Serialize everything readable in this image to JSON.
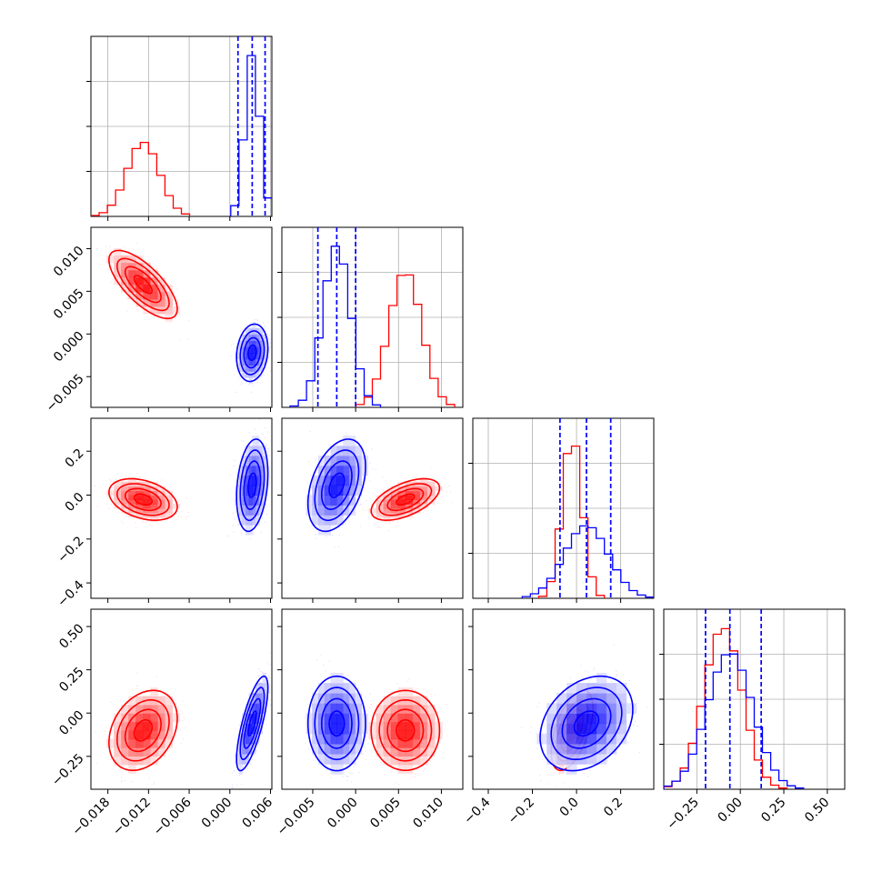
{
  "chart_data": {
    "type": "corner",
    "title": "",
    "colors": {
      "red": "#ff0000",
      "blue": "#0000ff",
      "grid": "#b0b0b0"
    },
    "grid": true,
    "legend": "none",
    "parameters": [
      {
        "range": [
          -0.0205,
          0.0062
        ],
        "ticks": [
          -0.018,
          -0.012,
          -0.006,
          0.0,
          0.006
        ],
        "tick_labels": [
          "−0.018",
          "−0.012",
          "−0.006",
          "0.000",
          "0.006"
        ]
      },
      {
        "range": [
          -0.0086,
          0.0125
        ],
        "ticks": [
          -0.005,
          0.0,
          0.005,
          0.01
        ],
        "tick_labels": [
          "−0.005",
          "0.000",
          "0.005",
          "0.010"
        ]
      },
      {
        "range": [
          -0.47,
          0.35
        ],
        "ticks": [
          -0.4,
          -0.2,
          0.0,
          0.2
        ],
        "tick_labels": [
          "−0.4",
          "−0.2",
          "0.0",
          "0.2"
        ]
      },
      {
        "range": [
          -0.44,
          0.6
        ],
        "ticks": [
          -0.25,
          0.0,
          0.25,
          0.5
        ],
        "tick_labels": [
          "−0.25",
          "0.00",
          "0.25",
          "0.50"
        ]
      }
    ],
    "series": [
      {
        "color": "#ff0000",
        "means": [
          -0.0128,
          0.0058,
          -0.02,
          -0.1
        ],
        "stds": [
          0.0024,
          0.0019,
          0.045,
          0.11
        ],
        "correlations": [
          [
            0,
            1,
            -0.72
          ],
          [
            0,
            2,
            -0.35
          ],
          [
            0,
            3,
            0.3
          ],
          [
            1,
            2,
            0.55
          ],
          [
            1,
            3,
            0.0
          ],
          [
            2,
            3,
            0.55
          ]
        ],
        "quantiles": []
      },
      {
        "color": "#0000ff",
        "means": [
          0.0033,
          -0.0022,
          0.045,
          -0.06
        ],
        "stds": [
          0.0011,
          0.0016,
          0.1,
          0.13
        ],
        "correlations": [
          [
            0,
            1,
            0.15
          ],
          [
            0,
            2,
            0.25
          ],
          [
            0,
            3,
            0.75
          ],
          [
            1,
            2,
            0.4
          ],
          [
            1,
            3,
            0.0
          ],
          [
            2,
            3,
            0.3
          ]
        ],
        "quantiles": [
          [
            0.0012,
            0.0033,
            0.0052
          ],
          [
            -0.0044,
            -0.0022,
            0.0
          ],
          [
            -0.075,
            0.045,
            0.155
          ],
          [
            -0.2,
            -0.06,
            0.12
          ]
        ]
      }
    ]
  }
}
